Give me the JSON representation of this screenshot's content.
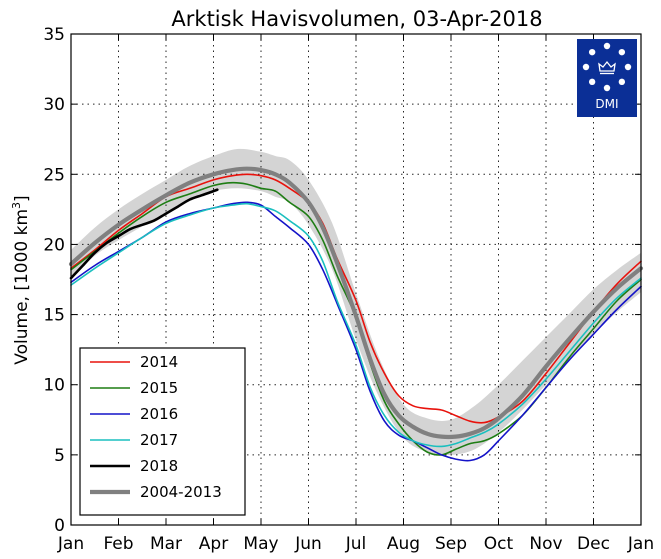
{
  "chart_data": {
    "type": "line",
    "title": "Arktisk Havisvolumen, 03-Apr-2018",
    "ylabel_main": "Volume, [1000 km",
    "ylabel_sup": "3",
    "ylabel_end": "]",
    "xlabel": "",
    "ylim": [
      0,
      35
    ],
    "xlim": [
      0,
      12
    ],
    "grid": true,
    "legend_position": "lower-left",
    "x_tick_labels": [
      "Jan",
      "Feb",
      "Mar",
      "Apr",
      "May",
      "Jun",
      "Jul",
      "Aug",
      "Sep",
      "Oct",
      "Nov",
      "Dec",
      "Jan"
    ],
    "y_ticks": [
      0,
      5,
      10,
      15,
      20,
      25,
      30,
      35
    ],
    "logo_text": "DMI",
    "band": {
      "x": [
        0,
        0.5,
        1,
        1.5,
        2,
        2.5,
        3,
        3.5,
        4,
        4.3,
        4.6,
        5,
        5.5,
        6,
        6.5,
        7,
        7.5,
        8,
        8.5,
        9,
        9.5,
        10,
        10.5,
        11,
        11.5,
        12
      ],
      "upper": [
        19.6,
        21.2,
        22.5,
        23.6,
        24.6,
        25.6,
        26.3,
        26.8,
        26.6,
        26.3,
        26.0,
        24.6,
        21.5,
        16.5,
        11.8,
        8.6,
        7.6,
        7.5,
        8.5,
        10.0,
        11.7,
        13.4,
        15.1,
        16.8,
        18.2,
        19.4
      ],
      "lower": [
        17.6,
        19.2,
        20.3,
        21.3,
        22.3,
        23.2,
        23.8,
        24.0,
        23.8,
        23.4,
        23.0,
        21.4,
        18.2,
        13.2,
        9.0,
        6.2,
        5.2,
        5.0,
        5.4,
        6.6,
        8.2,
        10.0,
        11.8,
        13.6,
        15.2,
        16.6
      ]
    },
    "series": [
      {
        "name": "2014",
        "color": "#e8120c",
        "width": 1.6,
        "x": [
          0,
          0.5,
          1,
          1.5,
          2,
          2.5,
          3,
          3.4,
          3.7,
          4,
          4.3,
          4.6,
          5,
          5.3,
          5.6,
          6,
          6.3,
          6.6,
          6.9,
          7.2,
          7.5,
          7.8,
          8.1,
          8.4,
          8.7,
          9,
          9.5,
          10,
          10.5,
          11,
          11.5,
          12
        ],
        "y": [
          18.3,
          19.6,
          21.0,
          22.2,
          23.4,
          24.0,
          24.6,
          24.9,
          25.0,
          24.9,
          24.6,
          24.0,
          23.0,
          21.5,
          19.0,
          16.0,
          13.0,
          10.8,
          9.2,
          8.5,
          8.3,
          8.2,
          7.8,
          7.4,
          7.3,
          7.7,
          8.8,
          10.8,
          13.0,
          15.2,
          17.2,
          18.8
        ]
      },
      {
        "name": "2015",
        "color": "#1e7d14",
        "width": 1.6,
        "x": [
          0,
          0.5,
          1,
          1.5,
          2,
          2.5,
          3,
          3.4,
          3.7,
          4,
          4.3,
          4.6,
          5,
          5.3,
          5.6,
          6,
          6.3,
          6.6,
          6.9,
          7.2,
          7.5,
          7.8,
          8.1,
          8.4,
          8.7,
          9,
          9.5,
          10,
          10.5,
          11,
          11.5,
          12
        ],
        "y": [
          18.2,
          19.5,
          20.8,
          22.0,
          23.0,
          23.6,
          24.2,
          24.4,
          24.3,
          24.0,
          23.8,
          23.0,
          22.0,
          20.3,
          17.8,
          14.8,
          11.5,
          8.8,
          7.2,
          6.0,
          5.2,
          5.0,
          5.4,
          5.8,
          6.0,
          6.5,
          7.8,
          9.8,
          12.0,
          14.0,
          16.0,
          17.5
        ]
      },
      {
        "name": "2016",
        "color": "#1413c8",
        "width": 1.6,
        "x": [
          0,
          0.5,
          1,
          1.5,
          2,
          2.5,
          3,
          3.4,
          3.7,
          4,
          4.3,
          4.6,
          5,
          5.3,
          5.6,
          6,
          6.3,
          6.6,
          6.9,
          7.2,
          7.5,
          7.8,
          8.1,
          8.4,
          8.7,
          9,
          9.5,
          10,
          10.5,
          11,
          11.5,
          12
        ],
        "y": [
          17.3,
          18.5,
          19.5,
          20.5,
          21.6,
          22.2,
          22.6,
          22.9,
          23.0,
          22.8,
          22.0,
          21.2,
          20.0,
          18.2,
          15.8,
          12.5,
          9.5,
          7.4,
          6.4,
          6.0,
          5.5,
          5.0,
          4.7,
          4.6,
          5.0,
          6.0,
          7.8,
          9.8,
          11.8,
          13.6,
          15.4,
          17.0
        ]
      },
      {
        "name": "2017",
        "color": "#1bbfbf",
        "width": 1.6,
        "x": [
          0,
          0.5,
          1,
          1.5,
          2,
          2.5,
          3,
          3.4,
          3.7,
          4,
          4.3,
          4.6,
          5,
          5.3,
          5.6,
          6,
          6.3,
          6.6,
          6.9,
          7.2,
          7.5,
          7.8,
          8.1,
          8.4,
          8.7,
          9,
          9.5,
          10,
          10.5,
          11,
          11.5,
          12
        ],
        "y": [
          17.1,
          18.3,
          19.4,
          20.5,
          21.5,
          22.1,
          22.6,
          22.8,
          22.9,
          22.7,
          22.4,
          21.7,
          20.6,
          18.8,
          16.0,
          12.8,
          9.8,
          7.8,
          6.6,
          6.0,
          5.7,
          5.6,
          5.8,
          6.2,
          6.6,
          7.2,
          8.6,
          10.4,
          12.4,
          14.4,
          16.2,
          17.6
        ]
      },
      {
        "name": "2018",
        "color": "#000000",
        "width": 2.6,
        "x": [
          0,
          0.25,
          0.5,
          0.75,
          1,
          1.25,
          1.5,
          1.75,
          2,
          2.25,
          2.5,
          2.75,
          3,
          3.08
        ],
        "y": [
          17.6,
          18.5,
          19.4,
          20.1,
          20.6,
          21.1,
          21.4,
          21.7,
          22.2,
          22.7,
          23.2,
          23.5,
          23.8,
          23.9
        ]
      },
      {
        "name": "2004-2013",
        "color": "#808080",
        "width": 4.2,
        "x": [
          0,
          0.5,
          1,
          1.5,
          2,
          2.5,
          3,
          3.4,
          3.7,
          4,
          4.3,
          4.6,
          5,
          5.3,
          5.6,
          6,
          6.3,
          6.6,
          6.9,
          7.2,
          7.5,
          7.8,
          8.1,
          8.4,
          8.7,
          9,
          9.5,
          10,
          10.5,
          11,
          11.5,
          12
        ],
        "y": [
          18.6,
          20.1,
          21.4,
          22.5,
          23.5,
          24.4,
          25.0,
          25.3,
          25.4,
          25.3,
          25.0,
          24.4,
          23.0,
          21.2,
          18.7,
          14.9,
          11.8,
          9.3,
          7.8,
          7.0,
          6.5,
          6.3,
          6.3,
          6.5,
          6.9,
          7.6,
          9.2,
          11.3,
          13.3,
          15.2,
          16.9,
          18.3
        ]
      }
    ]
  }
}
